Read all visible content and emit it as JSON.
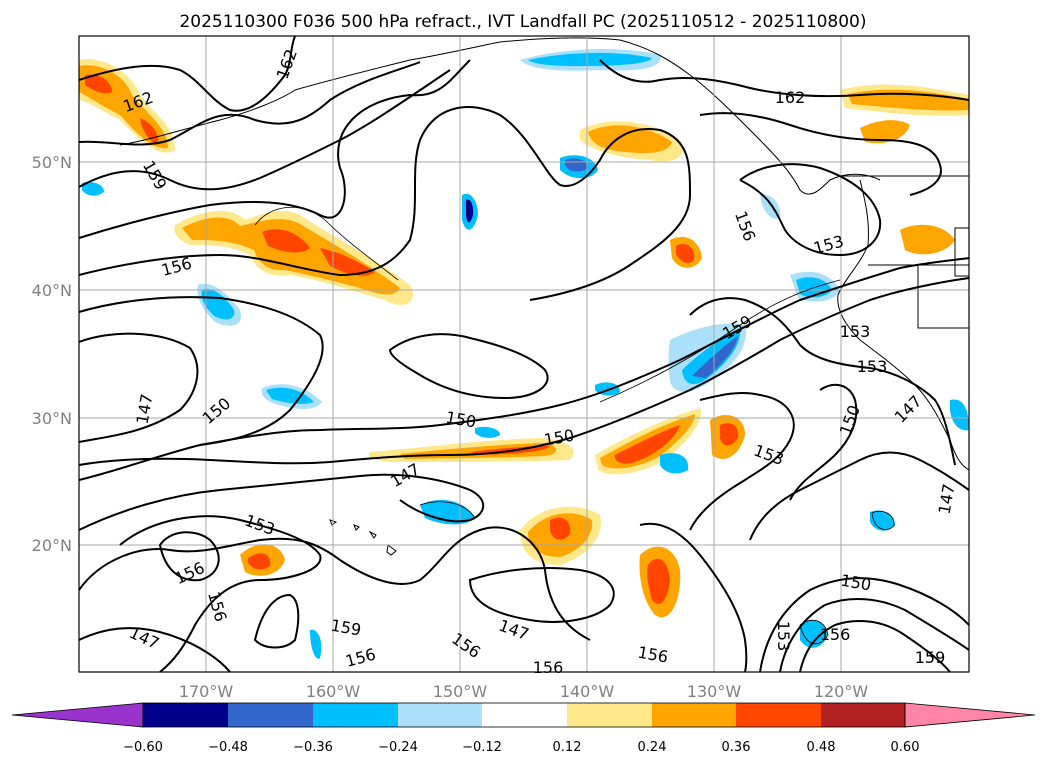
{
  "title": "2025110300 F036 500 hPa refract., IVT Landfall PC (2025110512 - 2025110800)",
  "axes": {
    "lon_labels": [
      "170°W",
      "160°W",
      "150°W",
      "140°W",
      "130°W",
      "120°W"
    ],
    "lat_labels": [
      "50°N",
      "40°N",
      "30°N",
      "20°N"
    ]
  },
  "colorbar": {
    "ticks": [
      "−0.60",
      "−0.48",
      "−0.36",
      "−0.24",
      "−0.12",
      "0.12",
      "0.24",
      "0.36",
      "0.48",
      "0.60"
    ],
    "colors": [
      "#9933cc",
      "#00008b",
      "#3366cc",
      "#00bfff",
      "#abe0fb",
      "#ffffff",
      "#ffe88a",
      "#ffa500",
      "#ff4500",
      "#b22222",
      "#ff85a8"
    ]
  },
  "contour_labels": [
    {
      "text": "162"
    },
    {
      "text": "162"
    },
    {
      "text": "162"
    },
    {
      "text": "159"
    },
    {
      "text": "159"
    },
    {
      "text": "159"
    },
    {
      "text": "159"
    },
    {
      "text": "156"
    },
    {
      "text": "156"
    },
    {
      "text": "156"
    },
    {
      "text": "156"
    },
    {
      "text": "156"
    },
    {
      "text": "156"
    },
    {
      "text": "156"
    },
    {
      "text": "156"
    },
    {
      "text": "156"
    },
    {
      "text": "153"
    },
    {
      "text": "153"
    },
    {
      "text": "153"
    },
    {
      "text": "153"
    },
    {
      "text": "153"
    },
    {
      "text": "153"
    },
    {
      "text": "150"
    },
    {
      "text": "150"
    },
    {
      "text": "150"
    },
    {
      "text": "150"
    },
    {
      "text": "150"
    },
    {
      "text": "147"
    },
    {
      "text": "147"
    },
    {
      "text": "147"
    },
    {
      "text": "147"
    },
    {
      "text": "147"
    },
    {
      "text": "147"
    }
  ]
}
